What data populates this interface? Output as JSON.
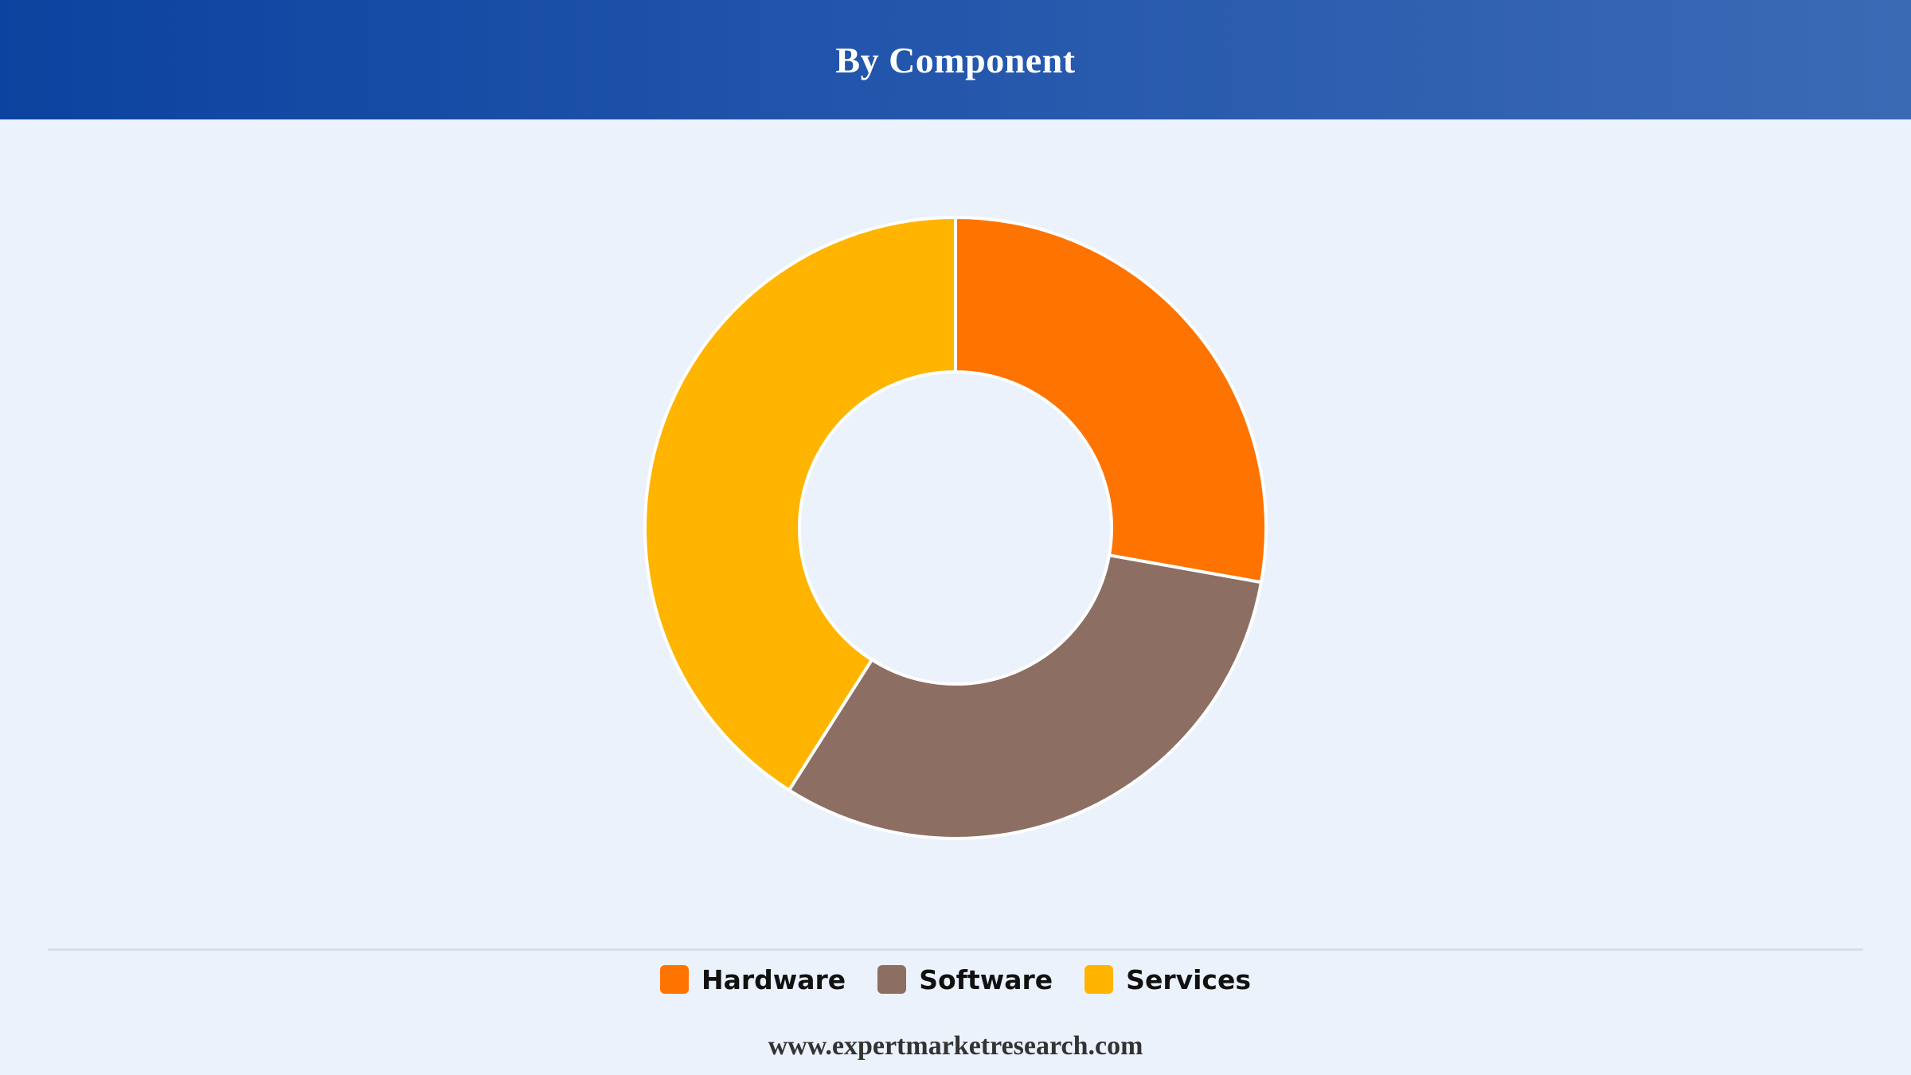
{
  "header": {
    "title": "By Component"
  },
  "chart_data": {
    "type": "pie",
    "variant": "donut",
    "title": "By Component",
    "categories": [
      "Hardware",
      "Software",
      "Services"
    ],
    "values": [
      27.8,
      31.2,
      41.0
    ],
    "unit": "%",
    "colors": [
      "#ff7300",
      "#8d6e63",
      "#ffb400"
    ],
    "legend_position": "bottom",
    "data_labels": false
  },
  "legend": {
    "items": [
      {
        "label": "Hardware",
        "color": "#ff7300"
      },
      {
        "label": "Software",
        "color": "#8d6e63"
      },
      {
        "label": "Services",
        "color": "#ffb400"
      }
    ]
  },
  "footer": {
    "source": "www.expertmarketresearch.com"
  }
}
